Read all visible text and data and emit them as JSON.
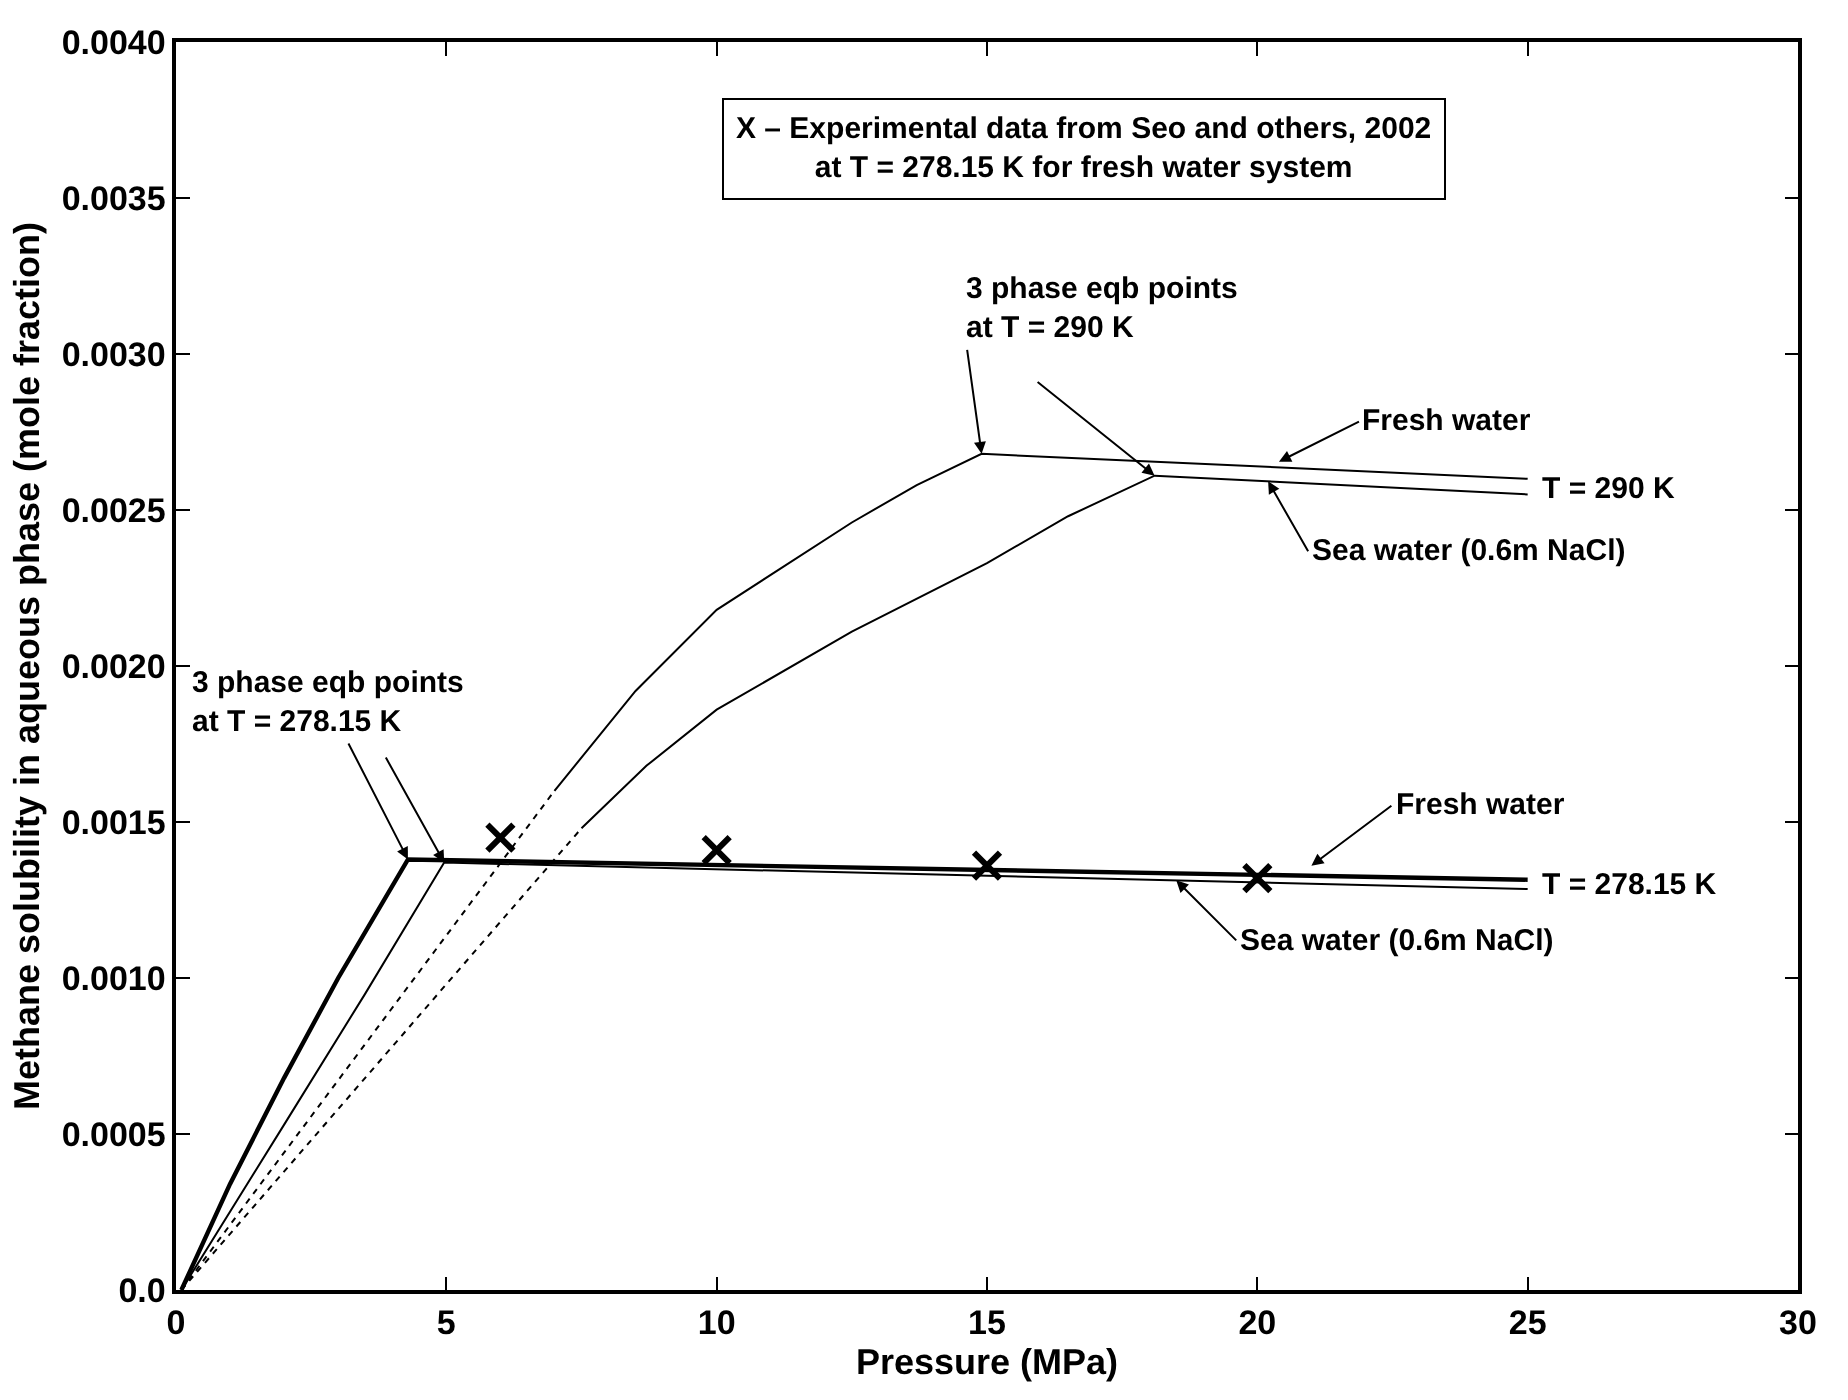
{
  "chart_data": {
    "type": "line",
    "xlabel": "Pressure (MPa)",
    "ylabel": "Methane solubility in aqueous phase (mole fraction)",
    "xlim": [
      0,
      30
    ],
    "xticks": [
      0,
      5,
      10,
      15,
      20,
      25,
      30
    ],
    "ylim": [
      0,
      0.004
    ],
    "yticks": [
      {
        "value": 0,
        "label": "0.0"
      },
      0.0005,
      {
        "value": 0.001,
        "label": "0.0010"
      },
      0.0015,
      {
        "value": 0.002,
        "label": "0.0020"
      },
      0.0025,
      {
        "value": 0.003,
        "label": "0.0030"
      },
      0.0035,
      {
        "value": 0.004,
        "label": "0.0040"
      }
    ],
    "series": [
      {
        "color": "#000000",
        "line_style": "solid",
        "x": [
          7,
          8.5,
          10,
          12.5,
          13.7,
          14.9,
          25
        ],
        "values": [
          0.0016,
          0.00192,
          0.00218,
          0.00246,
          0.00258,
          0.00268,
          0.0026
        ]
      },
      {
        "color": "#000000",
        "line_style": "solid",
        "x": [
          7.5,
          8.7,
          10,
          12.5,
          15,
          16.5,
          18.1,
          25
        ],
        "values": [
          0.00148,
          0.00168,
          0.00186,
          0.00211,
          0.00233,
          0.00248,
          0.00261,
          0.00255
        ]
      },
      {
        "color": "#000000",
        "line_style": "solid",
        "x": [
          0.1,
          1,
          2,
          3,
          4.29,
          25
        ],
        "values": [
          0.0,
          0.00034,
          0.00068,
          0.001,
          0.00138,
          0.001315
        ]
      },
      {
        "color": "#000000",
        "line_style": "solid",
        "x": [
          0.1,
          2,
          3.5,
          4.96,
          25
        ],
        "values": [
          0.0,
          0.00053,
          0.00095,
          0.00137,
          0.001285
        ]
      },
      {
        "color": "#000000",
        "line_style": "dotted",
        "x": [
          0.1,
          7
        ],
        "values": [
          0.0,
          0.0016
        ]
      },
      {
        "color": "#000000",
        "line_style": "dotted",
        "x": [
          0.1,
          7.5
        ],
        "values": [
          0.0,
          0.00148
        ]
      },
      {
        "type": "scatter",
        "color": "#000000",
        "marker": "cross",
        "x": [
          6,
          10,
          15,
          20
        ],
        "values": [
          0.00145,
          0.00141,
          0.00136,
          0.00132
        ]
      }
    ],
    "annotations": [
      "X – Experimental data from Seo and others, 2002\nat T = 278.15 K for fresh water system",
      {
        "text": "3 phase eqb points\nat T = 290 K",
        "x": 14.9,
        "y": 0.00268
      },
      {
        "text": "Fresh water",
        "x": 20.4,
        "y": 0.002655
      },
      {
        "text": "T = 290 K",
        "x": 25,
        "y": 0.00257
      },
      {
        "text": "Sea water (0.6m NaCl)",
        "x": 20.2,
        "y": 0.002592
      },
      {
        "text": "3 phase eqb points\nat T = 278.15 K",
        "x": 4.29,
        "y": 0.00138
      },
      {
        "text": "Fresh water",
        "x": 21.0,
        "y": 0.00136
      },
      {
        "text": "T = 278.15 K",
        "x": 25,
        "y": 0.0013
      },
      {
        "text": "Sea water (0.6m NaCl)",
        "x": 18.5,
        "y": 0.001313
      }
    ]
  }
}
